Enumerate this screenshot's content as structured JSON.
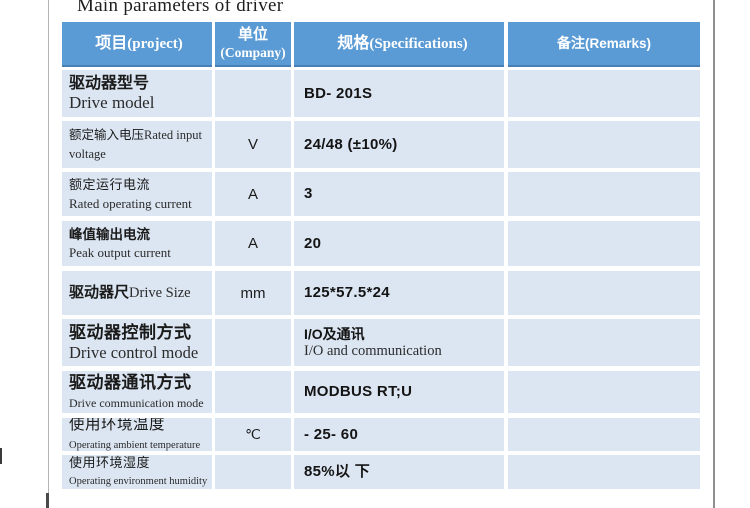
{
  "title": "Main parameters of driver",
  "colors": {
    "header_bg": "#5B9BD5",
    "row_bg": "#DCE6F2"
  },
  "table": {
    "headers": {
      "project": {
        "zh": "项目",
        "en": "(project)"
      },
      "unit": {
        "zh": "单位",
        "en": "(Company)"
      },
      "spec": {
        "zh": "规格",
        "en": "(Specifications)"
      },
      "remarks": {
        "zh": "备注",
        "en": "(Remarks)"
      }
    },
    "rows": [
      {
        "zh": "驱动器型号",
        "en": "Drive model",
        "unit": "",
        "spec": "BD- 201S",
        "spec_sub": "",
        "remarks": ""
      },
      {
        "zh": "额定输入电压",
        "en": "Rated input voltage",
        "unit": "V",
        "spec": "24/48 (±10%)",
        "spec_sub": "",
        "remarks": ""
      },
      {
        "zh": "额定运行电流",
        "en": "Rated operating current",
        "unit": "A",
        "spec": "3",
        "spec_sub": "",
        "remarks": ""
      },
      {
        "zh": "峰值输出电流",
        "en": "Peak output current",
        "unit": "A",
        "spec": "20",
        "spec_sub": "",
        "remarks": ""
      },
      {
        "zh": "驱动器尺",
        "en": "Drive Size",
        "unit": "mm",
        "spec": "125*57.5*24",
        "spec_sub": "",
        "remarks": ""
      },
      {
        "zh": "驱动器控制方式",
        "en": "Drive control mode",
        "unit": "",
        "spec": "I/O及通讯",
        "spec_sub": "I/O and communication",
        "remarks": ""
      },
      {
        "zh": "驱动器通讯方式",
        "en": "Drive communication mode",
        "unit": "",
        "spec": "MODBUS RT;U",
        "spec_sub": "",
        "remarks": ""
      },
      {
        "zh": "使用环境温度",
        "en": "Operating ambient temperature",
        "unit": "℃",
        "spec": "- 25- 60",
        "spec_sub": "",
        "remarks": ""
      },
      {
        "zh": "使用环境湿度",
        "en": "Operating environment humidity",
        "unit": "",
        "spec": "85%以 下",
        "spec_sub": "",
        "remarks": ""
      }
    ]
  }
}
